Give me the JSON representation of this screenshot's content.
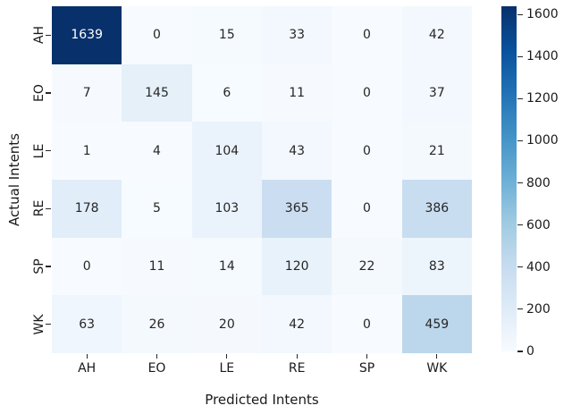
{
  "chart_data": {
    "type": "heatmap",
    "xlabel": "Predicted Intents",
    "ylabel": "Actual Intents",
    "x_categories": [
      "AH",
      "EO",
      "LE",
      "RE",
      "SP",
      "WK"
    ],
    "y_categories": [
      "AH",
      "EO",
      "LE",
      "RE",
      "SP",
      "WK"
    ],
    "matrix": [
      [
        1639,
        0,
        15,
        33,
        0,
        42
      ],
      [
        7,
        145,
        6,
        11,
        0,
        37
      ],
      [
        1,
        4,
        104,
        43,
        0,
        21
      ],
      [
        178,
        5,
        103,
        365,
        0,
        386
      ],
      [
        0,
        11,
        14,
        120,
        22,
        83
      ],
      [
        63,
        26,
        20,
        42,
        0,
        459
      ]
    ],
    "vmin": 0,
    "vmax": 1639,
    "colormap": "Blues",
    "colormap_min_color": "#f7fbff",
    "colormap_max_color": "#08306b",
    "colorbar_ticks": [
      0,
      200,
      400,
      600,
      800,
      1000,
      1200,
      1400,
      1600
    ],
    "annotation_light_text_color": "#ffffff",
    "annotation_dark_text_color": "#262626",
    "legend_position": "right-colorbar",
    "grid": false,
    "background_color": "#ffffff"
  }
}
